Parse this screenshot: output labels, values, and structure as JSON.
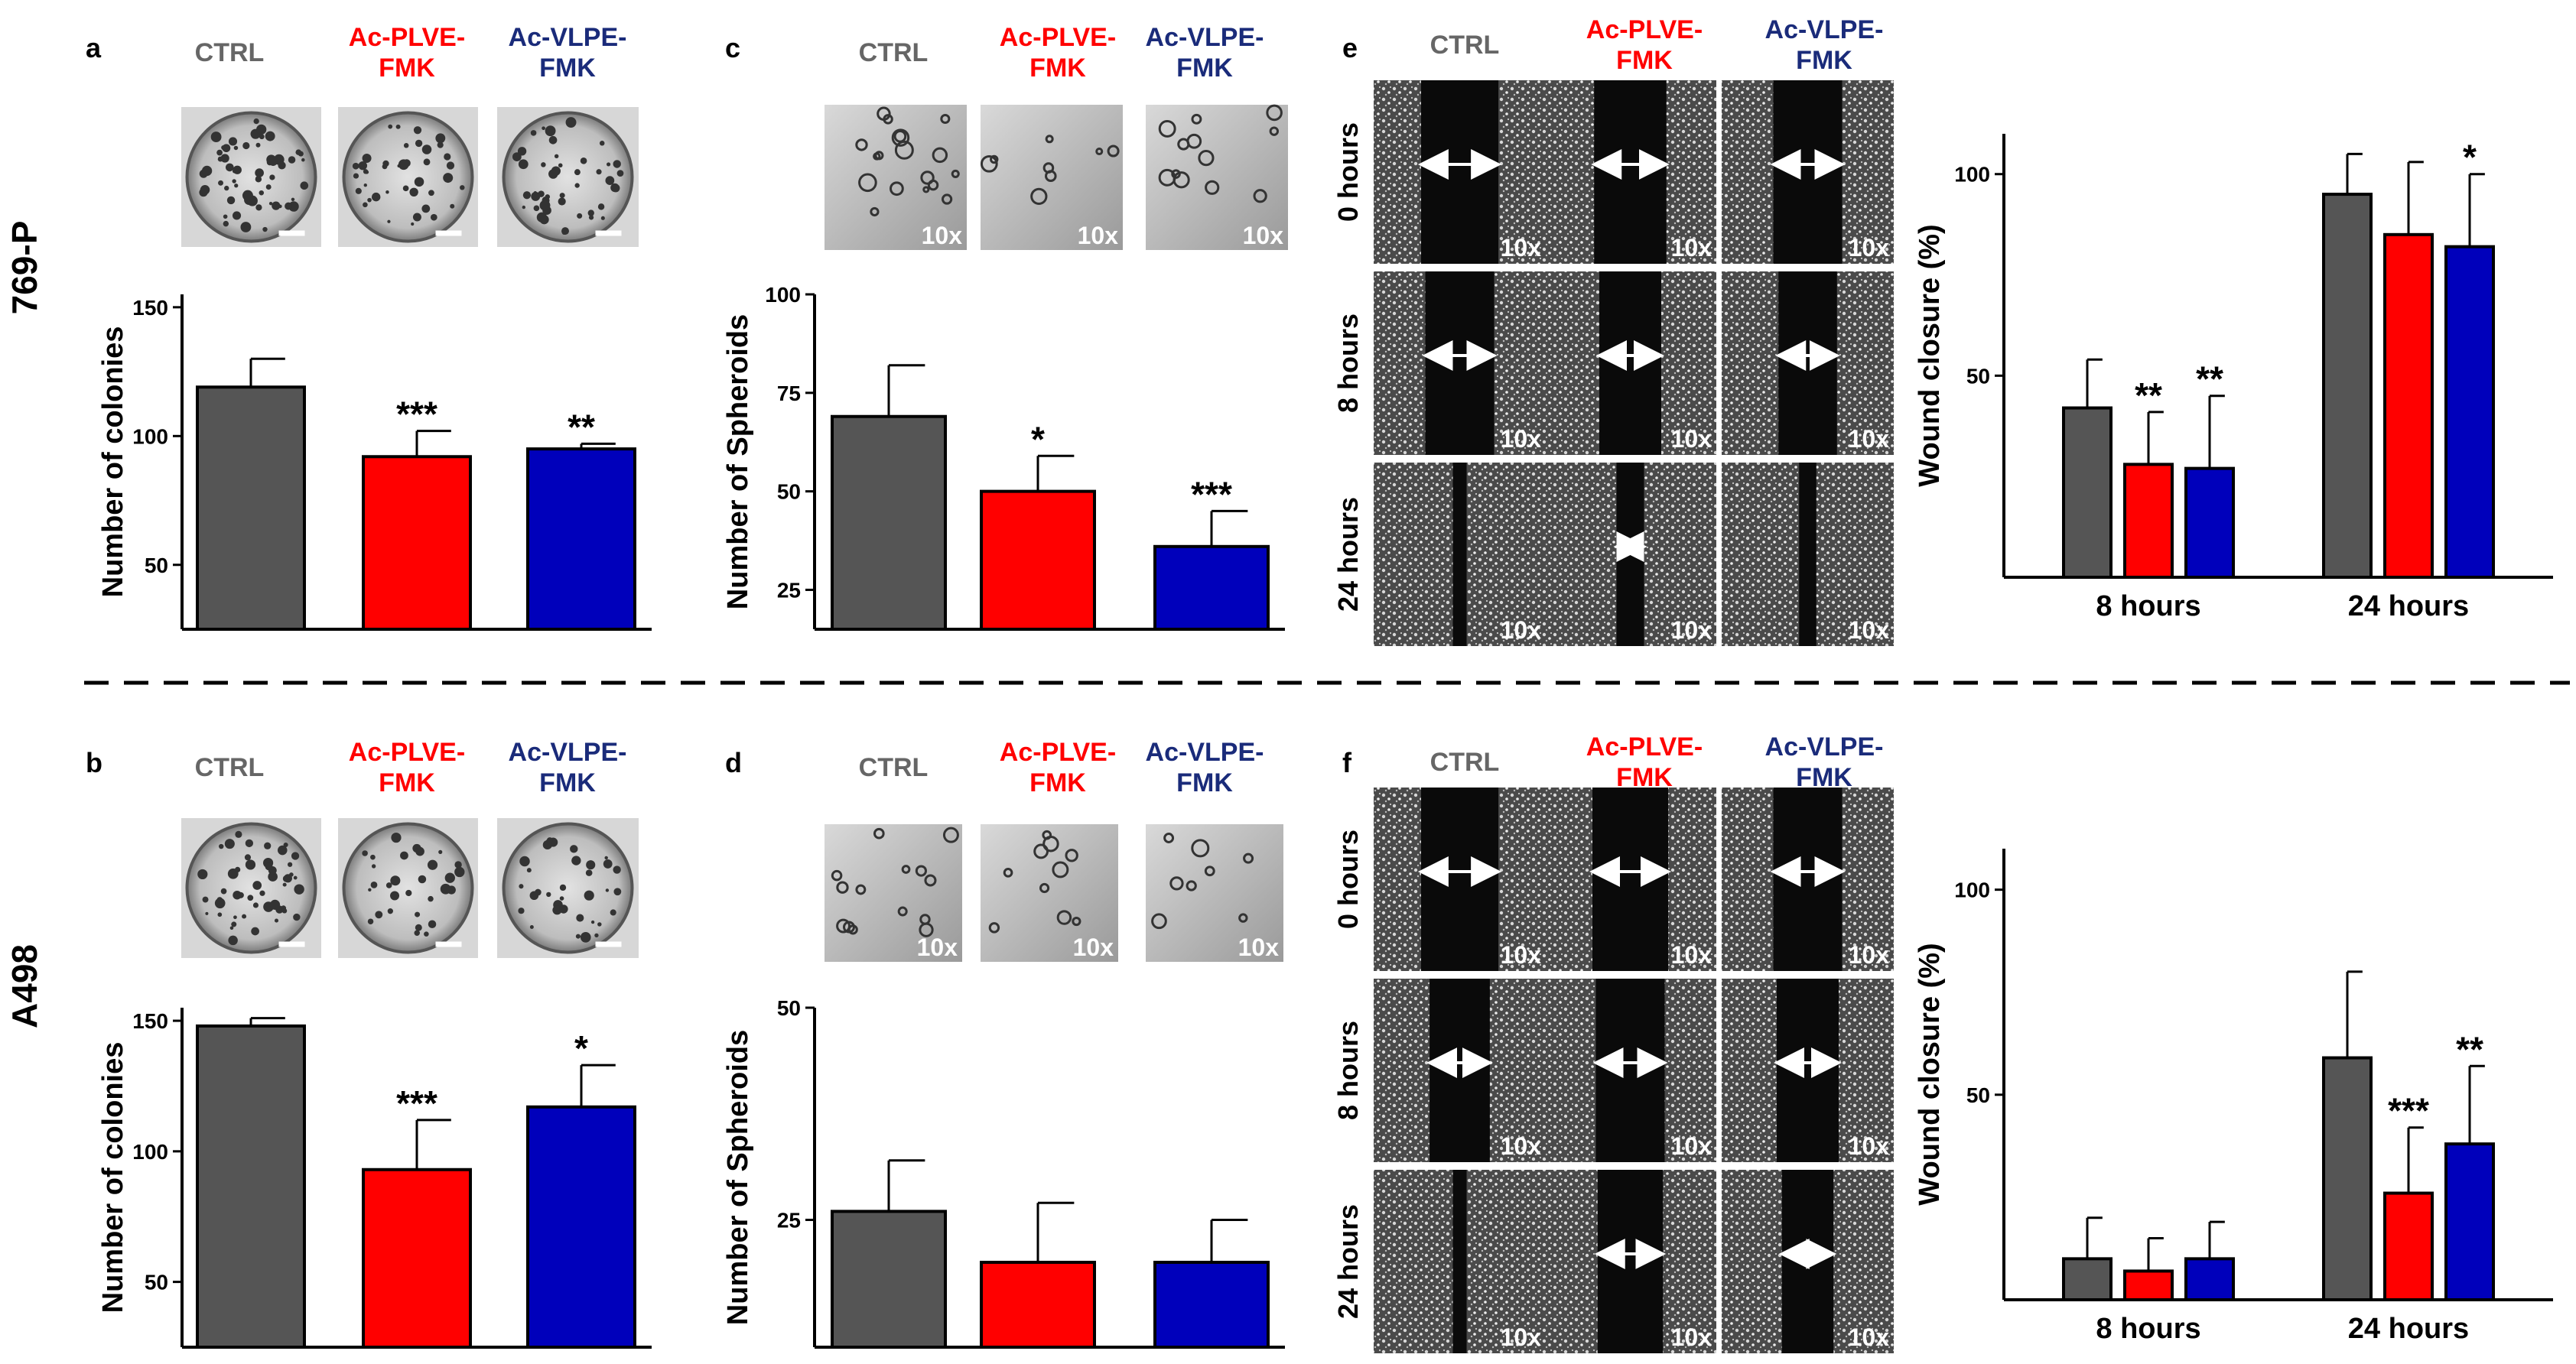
{
  "colors": {
    "ctrl": "#555555",
    "plve": "#ff0000",
    "vlpe": "#0000bb",
    "label_ctrl": "#666666",
    "label_plve": "#ff0000",
    "label_vlpe": "#1a2b7a"
  },
  "row_labels": {
    "top": "769-P",
    "bottom": "A498"
  },
  "conditions": {
    "ctrl": "CTRL",
    "plve": {
      "line1": "Ac-PLVE-",
      "line2": "FMK"
    },
    "vlpe": {
      "line1": "Ac-VLPE-",
      "line2": "FMK"
    }
  },
  "panels": {
    "a": "a",
    "b": "b",
    "c": "c",
    "d": "d",
    "e": "e",
    "f": "f"
  },
  "magnification": "10x",
  "time_labels": [
    "0 hours",
    "8 hours",
    "24 hours"
  ],
  "chart_data": [
    {
      "id": "a",
      "type": "bar",
      "title": "",
      "xlabel": "",
      "ylabel": "Number of colonies",
      "categories": [
        "CTRL",
        "Ac-PLVE-FMK",
        "Ac-VLPE-FMK"
      ],
      "values": [
        119,
        92,
        95
      ],
      "errors": [
        11,
        10,
        2
      ],
      "significance": [
        "",
        "***",
        "**"
      ],
      "ylim": [
        25,
        155
      ],
      "yticks": [
        50,
        100,
        150
      ]
    },
    {
      "id": "b",
      "type": "bar",
      "title": "",
      "xlabel": "",
      "ylabel": "Number of colonies",
      "categories": [
        "CTRL",
        "Ac-PLVE-FMK",
        "Ac-VLPE-FMK"
      ],
      "values": [
        148,
        93,
        117
      ],
      "errors": [
        3,
        19,
        16
      ],
      "significance": [
        "",
        "***",
        "*"
      ],
      "ylim": [
        25,
        155
      ],
      "yticks": [
        50,
        100,
        150
      ]
    },
    {
      "id": "c",
      "type": "bar",
      "title": "",
      "xlabel": "",
      "ylabel": "Number of Spheroids",
      "categories": [
        "CTRL",
        "Ac-PLVE-FMK",
        "Ac-VLPE-FMK"
      ],
      "values": [
        69,
        50,
        36
      ],
      "errors": [
        13,
        9,
        9
      ],
      "significance": [
        "",
        "*",
        "***"
      ],
      "ylim": [
        15,
        100
      ],
      "yticks": [
        25,
        50,
        75,
        100
      ]
    },
    {
      "id": "d",
      "type": "bar",
      "title": "",
      "xlabel": "",
      "ylabel": "Number of Spheroids",
      "categories": [
        "CTRL",
        "Ac-PLVE-FMK",
        "Ac-VLPE-FMK"
      ],
      "values": [
        26,
        20,
        20
      ],
      "errors": [
        6,
        7,
        5
      ],
      "significance": [
        "",
        "",
        ""
      ],
      "ylim": [
        10,
        50
      ],
      "yticks": [
        25,
        50
      ]
    },
    {
      "id": "e_chart",
      "type": "bar",
      "title": "",
      "xlabel": "",
      "ylabel": "Wound closure (%)",
      "categories": [
        "8 hours",
        "24 hours"
      ],
      "series": [
        {
          "name": "CTRL",
          "values": [
            42,
            95
          ],
          "errors": [
            12,
            10
          ],
          "significance": [
            "",
            ""
          ]
        },
        {
          "name": "Ac-PLVE-FMK",
          "values": [
            28,
            85
          ],
          "errors": [
            13,
            18
          ],
          "significance": [
            "**",
            ""
          ]
        },
        {
          "name": "Ac-VLPE-FMK",
          "values": [
            27,
            82
          ],
          "errors": [
            18,
            18
          ],
          "significance": [
            "**",
            "*"
          ]
        }
      ],
      "ylim": [
        0,
        110
      ],
      "yticks": [
        50,
        100
      ]
    },
    {
      "id": "f_chart",
      "type": "bar",
      "title": "",
      "xlabel": "",
      "ylabel": "Wound closure (%)",
      "categories": [
        "8 hours",
        "24 hours"
      ],
      "series": [
        {
          "name": "CTRL",
          "values": [
            10,
            59
          ],
          "errors": [
            10,
            21
          ],
          "significance": [
            "",
            ""
          ]
        },
        {
          "name": "Ac-PLVE-FMK",
          "values": [
            7,
            26
          ],
          "errors": [
            8,
            16
          ],
          "significance": [
            "",
            "***"
          ]
        },
        {
          "name": "Ac-VLPE-FMK",
          "values": [
            10,
            38
          ],
          "errors": [
            9,
            19
          ],
          "significance": [
            "",
            "**"
          ]
        }
      ],
      "ylim": [
        0,
        110
      ],
      "yticks": [
        50,
        100
      ]
    }
  ]
}
